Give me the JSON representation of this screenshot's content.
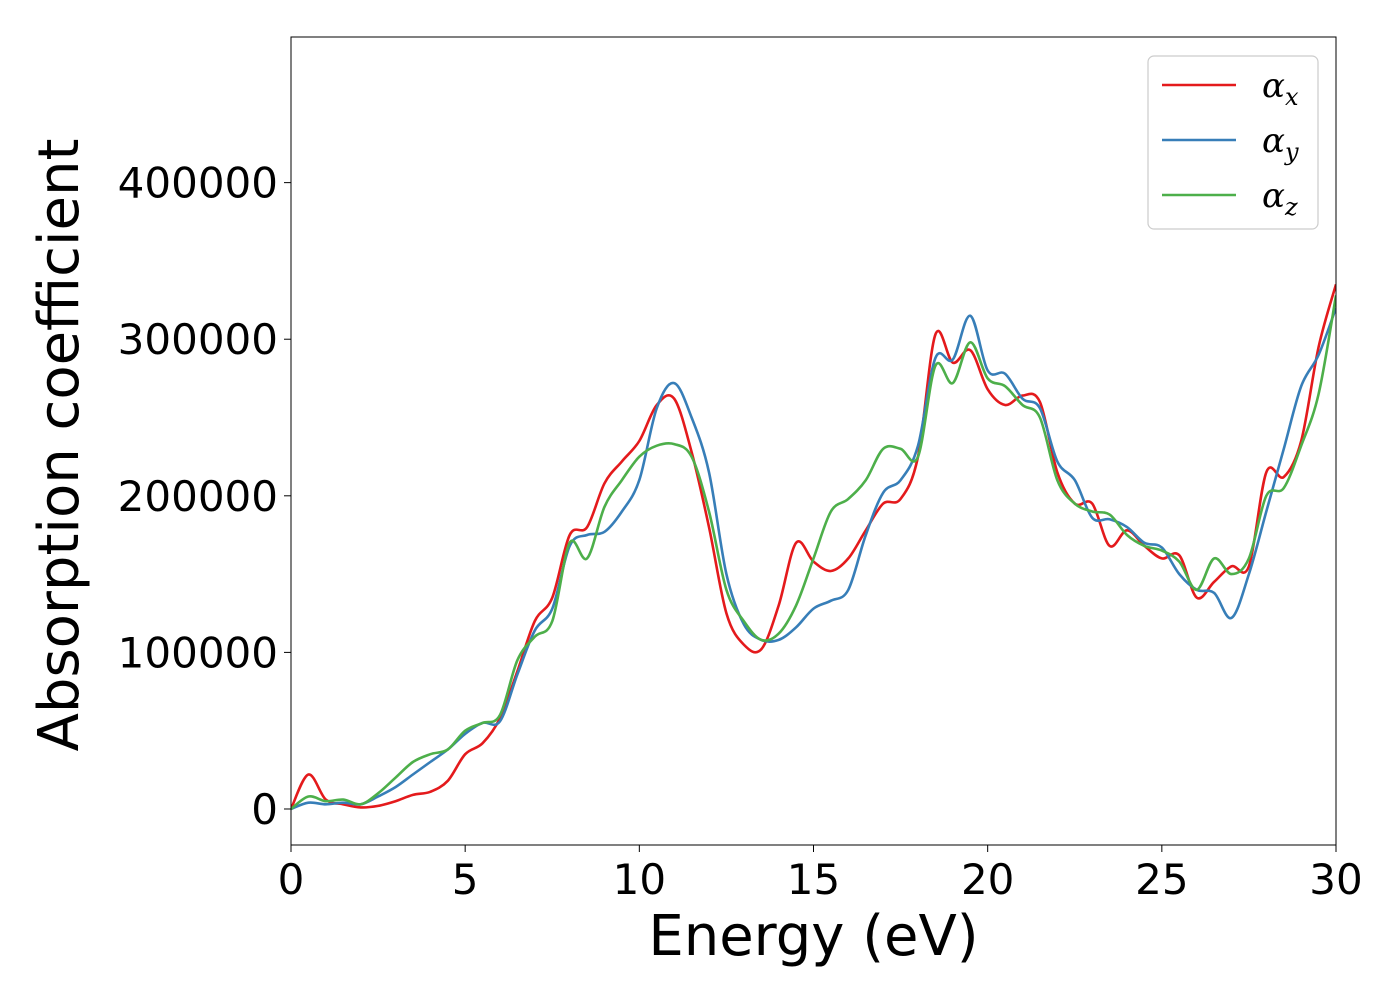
{
  "chart_data": {
    "type": "line",
    "xlabel": "Energy (eV)",
    "ylabel": "Absorption coefficient",
    "xlim": [
      0,
      30
    ],
    "ylim": [
      -23000,
      493000
    ],
    "xticks": [
      0,
      5,
      10,
      15,
      20,
      25,
      30
    ],
    "yticks": [
      0,
      100000,
      200000,
      300000,
      400000
    ],
    "grid": false,
    "legend_position": "top-right",
    "x": [
      0,
      0.5,
      1,
      1.5,
      2,
      2.5,
      3,
      3.5,
      4,
      4.5,
      5,
      5.5,
      6,
      6.5,
      7,
      7.5,
      8,
      8.5,
      9,
      9.5,
      10,
      10.5,
      11,
      11.5,
      12,
      12.5,
      13,
      13.5,
      14,
      14.5,
      15,
      15.5,
      16,
      16.5,
      17,
      17.5,
      18,
      18.5,
      19,
      19.5,
      20,
      20.5,
      21,
      21.5,
      22,
      22.5,
      23,
      23.5,
      24,
      24.5,
      25,
      25.5,
      26,
      26.5,
      27,
      27.5,
      28,
      28.5,
      29,
      29.5,
      30
    ],
    "series": [
      {
        "name": "α",
        "subscript": "x",
        "color": "#e41a1c",
        "values": [
          0,
          22000,
          6000,
          3000,
          1000,
          2000,
          5000,
          9000,
          11000,
          18000,
          35000,
          42000,
          58000,
          88000,
          120000,
          135000,
          175000,
          180000,
          208000,
          222000,
          235000,
          258000,
          262000,
          228000,
          180000,
          125000,
          105000,
          102000,
          130000,
          170000,
          158000,
          152000,
          160000,
          178000,
          195000,
          198000,
          225000,
          303000,
          285000,
          293000,
          268000,
          258000,
          264000,
          260000,
          215000,
          195000,
          195000,
          168000,
          178000,
          168000,
          160000,
          162000,
          135000,
          145000,
          155000,
          155000,
          215000,
          212000,
          235000,
          295000,
          335000
        ]
      },
      {
        "name": "α",
        "subscript": "y",
        "color": "#377eb8",
        "values": [
          0,
          4000,
          3000,
          4000,
          3000,
          8000,
          14000,
          22000,
          30000,
          38000,
          48000,
          55000,
          56000,
          86000,
          114000,
          128000,
          168000,
          175000,
          177000,
          190000,
          210000,
          256000,
          272000,
          250000,
          215000,
          150000,
          118000,
          108000,
          108000,
          116000,
          128000,
          133000,
          140000,
          175000,
          202000,
          210000,
          232000,
          288000,
          287000,
          315000,
          280000,
          278000,
          262000,
          256000,
          222000,
          210000,
          186000,
          185000,
          180000,
          170000,
          167000,
          150000,
          140000,
          138000,
          122000,
          150000,
          190000,
          230000,
          270000,
          290000,
          320000
        ]
      },
      {
        "name": "α",
        "subscript": "z",
        "color": "#4daf4a",
        "values": [
          0,
          8000,
          5000,
          6000,
          3000,
          10000,
          20000,
          30000,
          35000,
          38000,
          50000,
          55000,
          60000,
          95000,
          110000,
          120000,
          170000,
          160000,
          193000,
          210000,
          225000,
          232000,
          233000,
          225000,
          190000,
          140000,
          120000,
          108000,
          112000,
          130000,
          160000,
          190000,
          198000,
          210000,
          230000,
          230000,
          225000,
          283000,
          272000,
          298000,
          275000,
          270000,
          258000,
          250000,
          210000,
          195000,
          190000,
          188000,
          175000,
          168000,
          165000,
          158000,
          140000,
          160000,
          150000,
          160000,
          200000,
          205000,
          232000,
          265000,
          328000
        ]
      }
    ]
  }
}
